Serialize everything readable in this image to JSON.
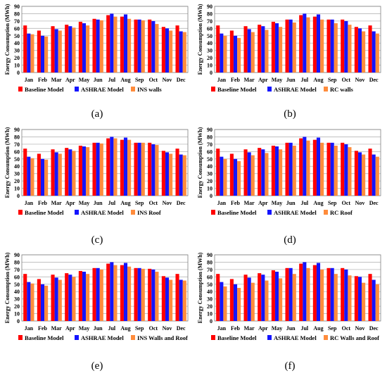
{
  "colors": {
    "baseline": "#ff0000",
    "ashrae": "#1414ff",
    "variant": "#ff8c3c",
    "grid": "#b8b8b8"
  },
  "chart_data": [
    {
      "type": "bar",
      "caption": "(a)",
      "ylabel": "Energy Consumption (MWh)",
      "ylim": [
        0,
        90
      ],
      "yticks": [
        0,
        10,
        20,
        30,
        40,
        50,
        60,
        70,
        80,
        90
      ],
      "categories": [
        "Jan",
        "Feb",
        "Mar",
        "Apr",
        "May",
        "Jun",
        "Jul",
        "Aug",
        "Sep",
        "Oct",
        "Nov",
        "Dec"
      ],
      "series": [
        {
          "name": "Baseline Model",
          "values": [
            64,
            57,
            63,
            65,
            69,
            73,
            78,
            76,
            72,
            72,
            62,
            64
          ]
        },
        {
          "name": "ASHRAE Model",
          "values": [
            53,
            50,
            59,
            63,
            67,
            72,
            80,
            79,
            72,
            70,
            60,
            56
          ]
        },
        {
          "name": "INS  walls",
          "values": [
            52,
            49,
            57,
            61,
            64,
            71,
            76,
            73,
            71,
            66,
            57,
            55
          ]
        }
      ]
    },
    {
      "type": "bar",
      "caption": "(b)",
      "ylabel": "Energy Consumption (MWh)",
      "ylim": [
        0,
        90
      ],
      "yticks": [
        0,
        10,
        20,
        30,
        40,
        50,
        60,
        70,
        80,
        90
      ],
      "categories": [
        "Jan",
        "Feb",
        "Mar",
        "Apr",
        "May",
        "Jun",
        "Jul",
        "Aug",
        "Sep",
        "Oct",
        "Nov",
        "Dec"
      ],
      "series": [
        {
          "name": "Baseline Model",
          "values": [
            64,
            57,
            63,
            65,
            69,
            72,
            78,
            76,
            72,
            72,
            62,
            64
          ]
        },
        {
          "name": "ASHRAE Model",
          "values": [
            53,
            50,
            59,
            63,
            67,
            72,
            80,
            79,
            72,
            70,
            60,
            56
          ]
        },
        {
          "name": "RC walls",
          "values": [
            50,
            47,
            55,
            58,
            62,
            68,
            75,
            72,
            67,
            65,
            56,
            53
          ]
        }
      ]
    },
    {
      "type": "bar",
      "caption": "(c)",
      "ylabel": "Energy Consumption (MWh)",
      "ylim": [
        0,
        90
      ],
      "yticks": [
        0,
        10,
        20,
        30,
        40,
        50,
        60,
        70,
        80,
        90
      ],
      "categories": [
        "Jan",
        "Feb",
        "Mar",
        "Apr",
        "May",
        "Jun",
        "Jul",
        "Aug",
        "Sep",
        "Oct",
        "Nov",
        "Dec"
      ],
      "series": [
        {
          "name": "Baseline Model",
          "values": [
            64,
            57,
            63,
            65,
            68,
            72,
            78,
            76,
            72,
            72,
            61,
            64
          ]
        },
        {
          "name": "ASHRAE Model",
          "values": [
            53,
            50,
            59,
            63,
            67,
            72,
            80,
            79,
            72,
            70,
            59,
            56
          ]
        },
        {
          "name": "INS Roof",
          "values": [
            51,
            49,
            57,
            61,
            66,
            71,
            78,
            76,
            72,
            69,
            57,
            55
          ]
        }
      ]
    },
    {
      "type": "bar",
      "caption": "(d)",
      "ylabel": "Energy Consumption (MWh)",
      "ylim": [
        0,
        90
      ],
      "yticks": [
        0,
        10,
        20,
        30,
        40,
        50,
        60,
        70,
        80,
        90
      ],
      "categories": [
        "Jan",
        "Feb",
        "Mar",
        "Apr",
        "May",
        "Jun",
        "Jul",
        "Aug",
        "Sep",
        "Oct",
        "Nov",
        "Dec"
      ],
      "series": [
        {
          "name": "Baseline Model",
          "values": [
            64,
            57,
            63,
            65,
            68,
            72,
            78,
            76,
            72,
            72,
            61,
            64
          ]
        },
        {
          "name": "ASHRAE Model",
          "values": [
            53,
            50,
            59,
            63,
            67,
            72,
            80,
            79,
            72,
            70,
            59,
            56
          ]
        },
        {
          "name": "RC Roof",
          "values": [
            50,
            47,
            55,
            58,
            63,
            68,
            75,
            72,
            68,
            66,
            56,
            53
          ]
        }
      ]
    },
    {
      "type": "bar",
      "caption": "(e)",
      "ylabel": "Energy Consumption (MWh)",
      "ylim": [
        0,
        90
      ],
      "yticks": [
        0,
        10,
        20,
        30,
        40,
        50,
        60,
        70,
        80,
        90
      ],
      "categories": [
        "Jan",
        "Feb",
        "Mar",
        "Apr",
        "May",
        "Jun",
        "Jul",
        "Aug",
        "Sep",
        "Oct",
        "Nov",
        "Dec"
      ],
      "series": [
        {
          "name": "Baseline Model",
          "values": [
            64,
            57,
            63,
            65,
            68,
            72,
            78,
            76,
            72,
            71,
            61,
            64
          ]
        },
        {
          "name": "ASHRAE Model",
          "values": [
            53,
            50,
            59,
            63,
            67,
            72,
            80,
            79,
            72,
            70,
            59,
            56
          ]
        },
        {
          "name": "INS Walls and Roof",
          "values": [
            51,
            48,
            56,
            60,
            64,
            70,
            76,
            74,
            71,
            67,
            56,
            55
          ]
        }
      ]
    },
    {
      "type": "bar",
      "caption": "(f)",
      "ylabel": "Energy Consumption (MWh)",
      "ylim": [
        0,
        90
      ],
      "yticks": [
        0,
        10,
        20,
        30,
        40,
        50,
        60,
        70,
        80,
        90
      ],
      "categories": [
        "Jan",
        "Feb",
        "Mar",
        "Apr",
        "May",
        "Jun",
        "Jul",
        "Aug",
        "Sep",
        "Oct",
        "Nov",
        "Dec"
      ],
      "series": [
        {
          "name": "Baseline Model",
          "values": [
            64,
            57,
            63,
            65,
            69,
            72,
            78,
            76,
            72,
            72,
            61,
            64
          ]
        },
        {
          "name": "ASHRAE Model",
          "values": [
            53,
            50,
            59,
            63,
            67,
            72,
            80,
            79,
            72,
            70,
            60,
            56
          ]
        },
        {
          "name": "RC Walls and Roof",
          "values": [
            47,
            45,
            52,
            55,
            58,
            64,
            72,
            70,
            64,
            62,
            52,
            50
          ]
        }
      ]
    }
  ]
}
